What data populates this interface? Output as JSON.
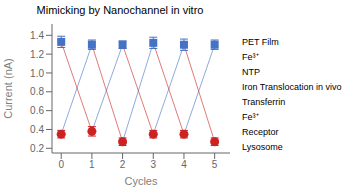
{
  "chart_data": {
    "type": "line",
    "title": "Mimicking by Nanochannel in vitro",
    "x_label": "Cycles",
    "y_label": "Current (nA)",
    "x": [
      0,
      1,
      2,
      3,
      4,
      5
    ],
    "series": [
      {
        "color": "#4472C4",
        "marker": "square",
        "line_style": "solid",
        "values": [
          1.33,
          1.3,
          1.3,
          1.32,
          1.3,
          1.3
        ],
        "errors": [
          0.06,
          0.05,
          0.04,
          0.06,
          0.06,
          0.05
        ]
      },
      {
        "color": "#CC2222",
        "marker": "circle",
        "line_style": "solid",
        "values": [
          0.35,
          0.38,
          0.27,
          0.35,
          0.35,
          0.27
        ],
        "errors": [
          0.04,
          0.05,
          0.04,
          0.04,
          0.04,
          0.04
        ]
      }
    ],
    "xlim": [
      -0.3,
      5.5
    ],
    "xticks": [
      0,
      1,
      2,
      3,
      4,
      5
    ],
    "ylim": [
      0.15,
      1.52
    ],
    "yticks": [
      0.2,
      0.4,
      0.6,
      0.8,
      {
        "value": 1,
        "label": "1.0"
      },
      1.2,
      1.4
    ],
    "grid": false,
    "annotations": [
      "PET Film",
      "Fe³⁺",
      "NTP",
      "Iron Translocation in vivo",
      "Transferrin",
      "Fe³⁺",
      "Receptor",
      "Lysosome"
    ]
  }
}
